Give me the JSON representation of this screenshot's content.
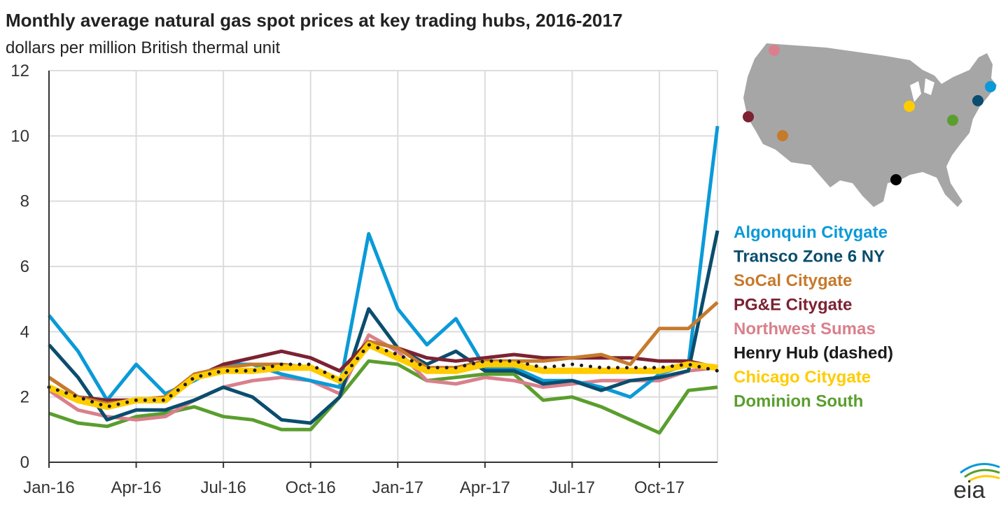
{
  "chart_data": {
    "type": "line",
    "title": "Monthly average natural gas spot prices at key trading hubs, 2016-2017",
    "subtitle": "dollars per million British thermal unit",
    "xlabel": "",
    "ylabel": "dollars per million British thermal unit",
    "ylim": [
      0,
      12
    ],
    "yticks": [
      "0",
      "2",
      "4",
      "6",
      "8",
      "10",
      "12"
    ],
    "xtick_labels": [
      "Jan-16",
      "Apr-16",
      "Jul-16",
      "Oct-16",
      "Jan-17",
      "Apr-17",
      "Jul-17",
      "Oct-17"
    ],
    "x": [
      "Jan-16",
      "Feb-16",
      "Mar-16",
      "Apr-16",
      "May-16",
      "Jun-16",
      "Jul-16",
      "Aug-16",
      "Sep-16",
      "Oct-16",
      "Nov-16",
      "Dec-16",
      "Jan-17",
      "Feb-17",
      "Mar-17",
      "Apr-17",
      "May-17",
      "Jun-17",
      "Jul-17",
      "Aug-17",
      "Sep-17",
      "Oct-17",
      "Nov-17",
      "Dec-17"
    ],
    "grid": true,
    "legend_position": "right",
    "series": [
      {
        "name": "Algonquin Citygate",
        "color": "#0a9ad8",
        "values": [
          4.5,
          3.4,
          1.9,
          3.0,
          2.1,
          2.5,
          3.0,
          3.0,
          2.7,
          2.5,
          2.3,
          7.0,
          4.7,
          3.6,
          4.4,
          2.9,
          2.9,
          2.5,
          2.5,
          2.3,
          2.0,
          2.7,
          3.0,
          10.3
        ]
      },
      {
        "name": "Transco Zone 6 NY",
        "color": "#0a4d6e",
        "values": [
          3.6,
          2.6,
          1.3,
          1.6,
          1.6,
          1.9,
          2.3,
          2.0,
          1.3,
          1.2,
          2.0,
          4.7,
          3.5,
          3.0,
          3.4,
          2.8,
          2.8,
          2.4,
          2.5,
          2.2,
          2.5,
          2.6,
          2.8,
          7.1
        ]
      },
      {
        "name": "SoCal Citygate",
        "color": "#c67a2c",
        "values": [
          2.6,
          2.0,
          1.8,
          1.9,
          2.0,
          2.7,
          2.9,
          3.0,
          3.0,
          2.9,
          2.5,
          3.7,
          3.5,
          2.9,
          2.9,
          3.1,
          3.1,
          3.1,
          3.2,
          3.3,
          3.0,
          4.1,
          4.1,
          4.9
        ]
      },
      {
        "name": "PG&E Citygate",
        "color": "#7c2232",
        "values": [
          2.6,
          2.0,
          1.9,
          1.9,
          2.0,
          2.6,
          3.0,
          3.2,
          3.4,
          3.2,
          2.8,
          3.7,
          3.5,
          3.2,
          3.1,
          3.2,
          3.3,
          3.2,
          3.2,
          3.2,
          3.2,
          3.1,
          3.1,
          2.9
        ]
      },
      {
        "name": "Northwest Sumas",
        "color": "#d9808c",
        "values": [
          2.2,
          1.6,
          1.4,
          1.3,
          1.4,
          1.9,
          2.3,
          2.5,
          2.6,
          2.5,
          2.1,
          3.9,
          3.4,
          2.5,
          2.4,
          2.6,
          2.5,
          2.3,
          2.4,
          2.5,
          2.5,
          2.5,
          2.8,
          2.9
        ]
      },
      {
        "name": "Henry Hub (dashed)",
        "color": "#1a1a1a",
        "dashed": true,
        "values": [
          2.3,
          2.0,
          1.7,
          1.9,
          1.9,
          2.6,
          2.8,
          2.8,
          3.0,
          3.0,
          2.5,
          3.6,
          3.3,
          2.9,
          2.9,
          3.1,
          3.1,
          2.9,
          3.0,
          2.9,
          2.9,
          2.9,
          3.0,
          2.8
        ]
      },
      {
        "name": "Chicago Citygate",
        "color": "#ffcc00",
        "values": [
          2.3,
          1.9,
          1.7,
          1.9,
          1.9,
          2.6,
          2.8,
          2.8,
          2.9,
          2.9,
          2.5,
          3.6,
          3.2,
          2.8,
          2.8,
          3.0,
          3.0,
          2.8,
          2.8,
          2.8,
          2.8,
          2.8,
          3.0,
          2.9
        ]
      },
      {
        "name": "Dominion South",
        "color": "#5a9e2e",
        "values": [
          1.5,
          1.2,
          1.1,
          1.4,
          1.5,
          1.7,
          1.4,
          1.3,
          1.0,
          1.0,
          2.0,
          3.1,
          3.0,
          2.5,
          2.6,
          2.7,
          2.7,
          1.9,
          2.0,
          1.7,
          1.3,
          0.9,
          2.2,
          2.3
        ]
      }
    ]
  },
  "logo": "eia"
}
